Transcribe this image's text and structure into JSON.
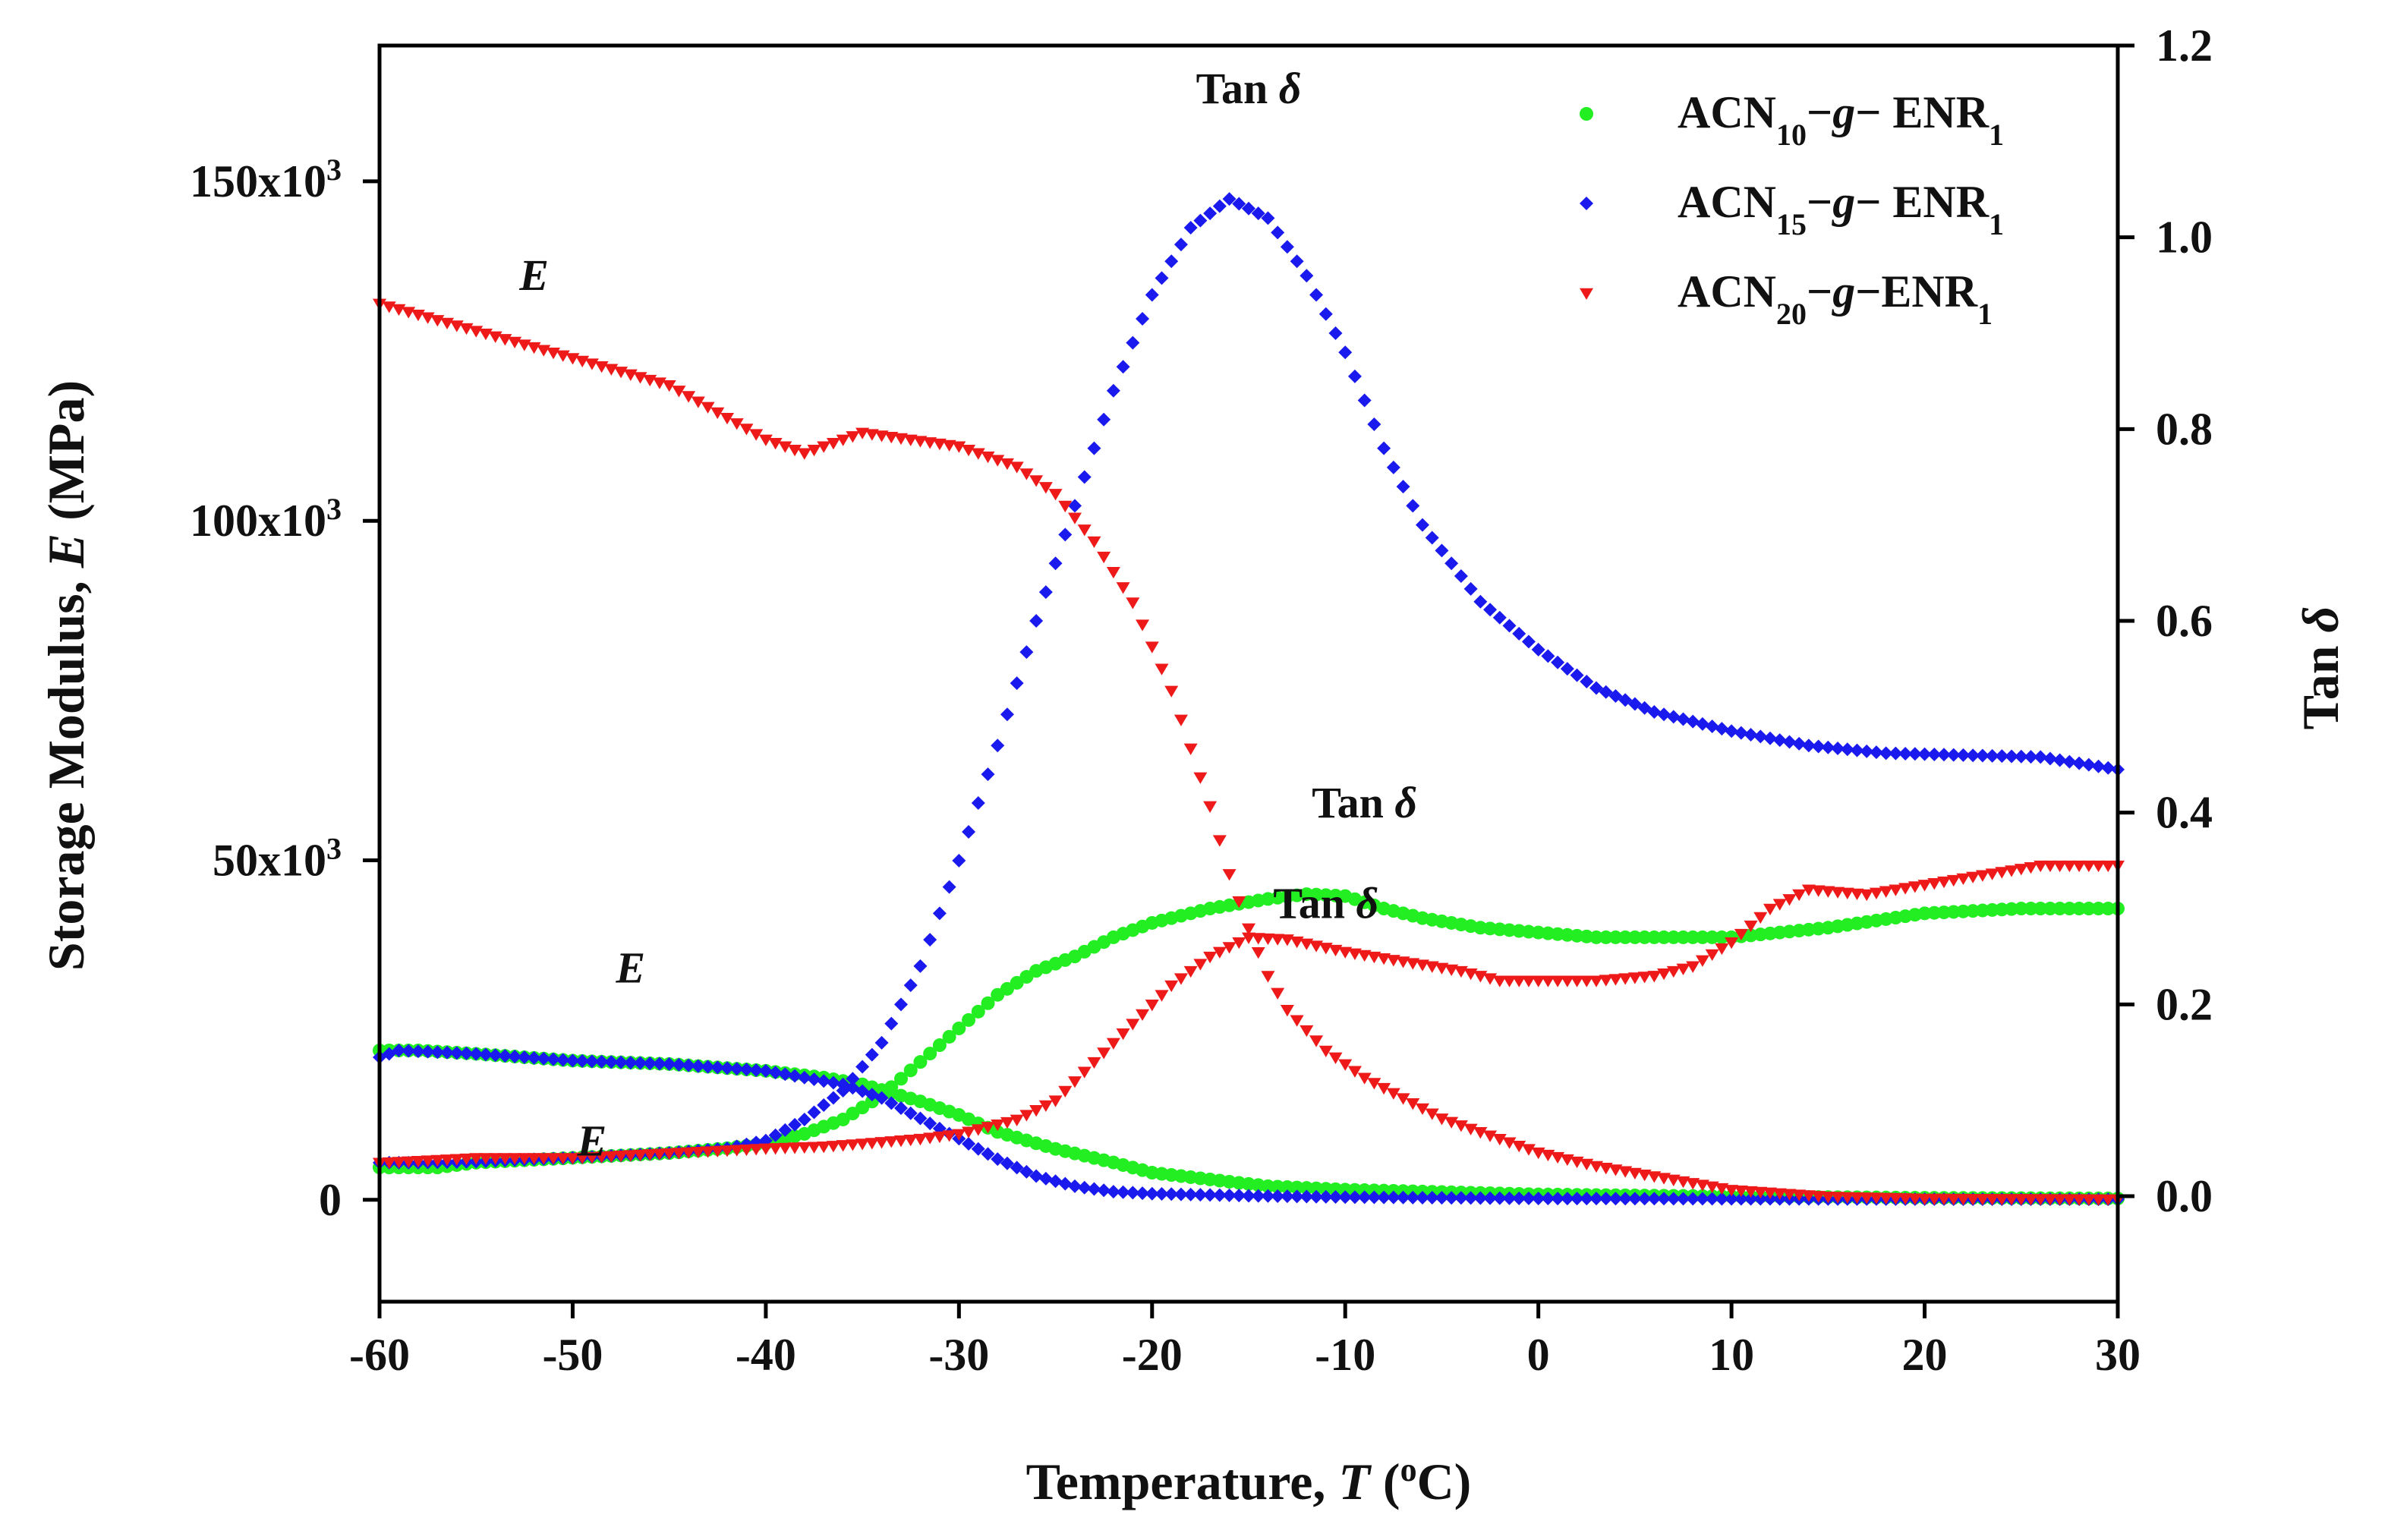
{
  "chart_data": {
    "type": "scatter",
    "x_axis": {
      "label_prefix": "Temperature, ",
      "label_var": "T",
      "label_unit_open": " (",
      "label_unit_sup": "o",
      "label_unit_close": "C)",
      "min": -60,
      "max": 30,
      "ticks": [
        -60,
        -50,
        -40,
        -30,
        -20,
        -10,
        0,
        10,
        20,
        30
      ],
      "tick_labels": [
        "-60",
        "-50",
        "-40",
        "-30",
        "-20",
        "-10",
        "0",
        "10",
        "20",
        "30"
      ]
    },
    "y_left": {
      "label_prefix": "Storage Modulus, ",
      "label_var": "E",
      "label_suffix": " (MPa)",
      "min": -15000,
      "max": 170000,
      "ticks": [
        0,
        50000,
        100000,
        150000
      ],
      "tick_labels": [
        {
          "base": "0",
          "exp": ""
        },
        {
          "base": "50x10",
          "exp": "3"
        },
        {
          "base": "100x10",
          "exp": "3"
        },
        {
          "base": "150x10",
          "exp": "3"
        }
      ]
    },
    "y_right": {
      "label_prefix": "Tan ",
      "label_var": "δ",
      "min": -0.11,
      "max": 1.2,
      "ticks": [
        0.0,
        0.2,
        0.4,
        0.6,
        0.8,
        1.0,
        1.2
      ],
      "tick_labels": [
        "0.0",
        "0.2",
        "0.4",
        "0.6",
        "0.8",
        "1.0",
        "1.2"
      ]
    },
    "series": [
      {
        "id": "acn10",
        "color": "#22ee22",
        "marker": "circle",
        "legend": {
          "pre": "ACN",
          "sub1": "10",
          "mid": "−",
          "it": "g",
          "post": "− ENR",
          "sub2": "1"
        },
        "E": [
          [
            -60,
            22000
          ],
          [
            -58,
            22000
          ],
          [
            -55,
            21500
          ],
          [
            -50,
            20500
          ],
          [
            -45,
            20000
          ],
          [
            -40,
            19000
          ],
          [
            -37,
            18000
          ],
          [
            -35,
            17000
          ],
          [
            -32,
            14500
          ],
          [
            -30,
            12500
          ],
          [
            -28,
            10000
          ],
          [
            -25,
            7500
          ],
          [
            -22,
            5500
          ],
          [
            -20,
            4000
          ],
          [
            -17,
            3000
          ],
          [
            -14,
            2000
          ],
          [
            -10,
            1500
          ],
          [
            0,
            800
          ],
          [
            10,
            500
          ],
          [
            20,
            300
          ],
          [
            30,
            200
          ]
        ],
        "tan": [
          [
            -60,
            0.03
          ],
          [
            -57,
            0.03
          ],
          [
            -55,
            0.035
          ],
          [
            -50,
            0.04
          ],
          [
            -45,
            0.045
          ],
          [
            -42,
            0.05
          ],
          [
            -40,
            0.055
          ],
          [
            -38,
            0.065
          ],
          [
            -36,
            0.08
          ],
          [
            -34,
            0.105
          ],
          [
            -32,
            0.14
          ],
          [
            -30,
            0.175
          ],
          [
            -28,
            0.21
          ],
          [
            -26,
            0.235
          ],
          [
            -24,
            0.25
          ],
          [
            -22,
            0.27
          ],
          [
            -20,
            0.285
          ],
          [
            -17,
            0.3
          ],
          [
            -14,
            0.31
          ],
          [
            -12,
            0.315
          ],
          [
            -10,
            0.313
          ],
          [
            -8,
            0.3
          ],
          [
            -6,
            0.29
          ],
          [
            -3,
            0.28
          ],
          [
            0,
            0.275
          ],
          [
            3,
            0.27
          ],
          [
            7,
            0.27
          ],
          [
            10,
            0.27
          ],
          [
            15,
            0.28
          ],
          [
            20,
            0.295
          ],
          [
            25,
            0.3
          ],
          [
            30,
            0.3
          ]
        ]
      },
      {
        "id": "acn15",
        "color": "#1a1aee",
        "marker": "diamond",
        "legend": {
          "pre": "ACN",
          "sub1": "15",
          "mid": "−",
          "it": "g",
          "post": "− ENR",
          "sub2": "1"
        },
        "E": [
          [
            -60,
            21000
          ],
          [
            -59,
            22000
          ],
          [
            -55,
            21500
          ],
          [
            -50,
            20500
          ],
          [
            -45,
            20000
          ],
          [
            -40,
            19000
          ],
          [
            -38,
            18000
          ],
          [
            -36,
            17000
          ],
          [
            -34,
            15000
          ],
          [
            -32,
            12000
          ],
          [
            -30,
            9000
          ],
          [
            -28,
            6000
          ],
          [
            -26,
            3500
          ],
          [
            -24,
            2000
          ],
          [
            -22,
            1200
          ],
          [
            -20,
            900
          ],
          [
            -15,
            600
          ],
          [
            -10,
            400
          ],
          [
            0,
            200
          ],
          [
            10,
            150
          ],
          [
            20,
            100
          ],
          [
            30,
            80
          ]
        ],
        "tan": [
          [
            -60,
            0.035
          ],
          [
            -58,
            0.035
          ],
          [
            -55,
            0.036
          ],
          [
            -50,
            0.04
          ],
          [
            -45,
            0.045
          ],
          [
            -42,
            0.05
          ],
          [
            -40,
            0.058
          ],
          [
            -38,
            0.08
          ],
          [
            -36,
            0.11
          ],
          [
            -34,
            0.16
          ],
          [
            -32,
            0.24
          ],
          [
            -30,
            0.35
          ],
          [
            -28,
            0.47
          ],
          [
            -26,
            0.6
          ],
          [
            -24,
            0.72
          ],
          [
            -22,
            0.84
          ],
          [
            -20,
            0.94
          ],
          [
            -18,
            1.01
          ],
          [
            -16,
            1.04
          ],
          [
            -14,
            1.02
          ],
          [
            -12,
            0.96
          ],
          [
            -10,
            0.88
          ],
          [
            -8,
            0.78
          ],
          [
            -6,
            0.7
          ],
          [
            -3,
            0.62
          ],
          [
            0,
            0.57
          ],
          [
            3,
            0.53
          ],
          [
            6,
            0.505
          ],
          [
            10,
            0.485
          ],
          [
            14,
            0.47
          ],
          [
            18,
            0.462
          ],
          [
            22,
            0.46
          ],
          [
            26,
            0.458
          ],
          [
            30,
            0.445
          ]
        ]
      },
      {
        "id": "acn20",
        "color": "#ee1a1a",
        "marker": "triangle-down",
        "legend": {
          "pre": "ACN",
          "sub1": "20",
          "mid": "−",
          "it": "g",
          "post": "−ENR",
          "sub2": "1"
        },
        "E": [
          [
            -60,
            132000
          ],
          [
            -55,
            128000
          ],
          [
            -50,
            124000
          ],
          [
            -45,
            120000
          ],
          [
            -40,
            112000
          ],
          [
            -38,
            110000
          ],
          [
            -35,
            113000
          ],
          [
            -30,
            111000
          ],
          [
            -27,
            108000
          ],
          [
            -25,
            104000
          ],
          [
            -23,
            97000
          ],
          [
            -21,
            88000
          ],
          [
            -19,
            75000
          ],
          [
            -17,
            58000
          ],
          [
            -16,
            48000
          ],
          [
            -15,
            40000
          ],
          [
            -14,
            33000
          ],
          [
            -13,
            28000
          ],
          [
            -11,
            22000
          ],
          [
            -9,
            18000
          ],
          [
            -7,
            15000
          ],
          [
            -5,
            12000
          ],
          [
            -2,
            9000
          ],
          [
            0,
            7000
          ],
          [
            3,
            5000
          ],
          [
            6,
            3500
          ],
          [
            10,
            1500
          ],
          [
            15,
            500
          ],
          [
            20,
            200
          ],
          [
            30,
            100
          ]
        ],
        "tan": [
          [
            -60,
            0.035
          ],
          [
            -55,
            0.04
          ],
          [
            -50,
            0.04
          ],
          [
            -45,
            0.045
          ],
          [
            -40,
            0.05
          ],
          [
            -37,
            0.052
          ],
          [
            -35,
            0.055
          ],
          [
            -32,
            0.06
          ],
          [
            -30,
            0.065
          ],
          [
            -27,
            0.08
          ],
          [
            -25,
            0.1
          ],
          [
            -23,
            0.14
          ],
          [
            -21,
            0.18
          ],
          [
            -19,
            0.22
          ],
          [
            -17,
            0.25
          ],
          [
            -15,
            0.27
          ],
          [
            -13,
            0.268
          ],
          [
            -10,
            0.255
          ],
          [
            -7,
            0.245
          ],
          [
            -4,
            0.235
          ],
          [
            -2,
            0.225
          ],
          [
            0,
            0.225
          ],
          [
            3,
            0.225
          ],
          [
            6,
            0.23
          ],
          [
            8,
            0.24
          ],
          [
            10,
            0.265
          ],
          [
            12,
            0.3
          ],
          [
            14,
            0.32
          ],
          [
            17,
            0.315
          ],
          [
            20,
            0.325
          ],
          [
            23,
            0.335
          ],
          [
            26,
            0.345
          ],
          [
            30,
            0.345
          ]
        ]
      }
    ],
    "annotations": [
      {
        "id": "tan-acn15",
        "kind": "tan",
        "pre": "Tan ",
        "it": "δ",
        "x": -15,
        "axis": "right",
        "y": 1.14
      },
      {
        "id": "tan-acn10",
        "kind": "tan",
        "pre": "Tan ",
        "it": "δ",
        "x": -9,
        "axis": "right",
        "y": 0.395
      },
      {
        "id": "tan-acn20",
        "kind": "tan",
        "pre": "Tan ",
        "it": "δ",
        "x": -11,
        "axis": "right",
        "y": 0.29
      },
      {
        "id": "e-acn20",
        "kind": "E",
        "pre": "",
        "it": "E",
        "x": -52,
        "axis": "left",
        "y": 134000
      },
      {
        "id": "e-acn10",
        "kind": "E",
        "pre": "",
        "it": "E",
        "x": -47,
        "axis": "left",
        "y": 32000
      },
      {
        "id": "e-acn15",
        "kind": "E",
        "pre": "",
        "it": "E",
        "x": -49,
        "axis": "left",
        "y": 6500
      }
    ],
    "legend_placement": "top-right",
    "grid": false
  }
}
